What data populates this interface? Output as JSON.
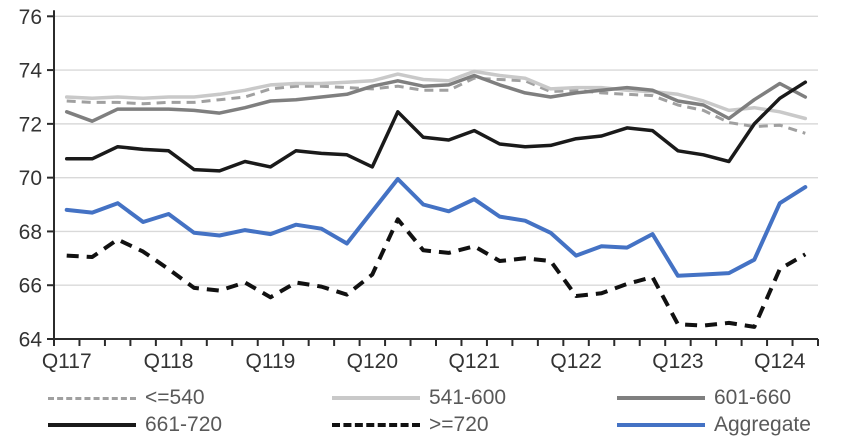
{
  "chart_data": {
    "type": "line",
    "title": "",
    "xlabel": "",
    "ylabel": "",
    "x_tick_labels": [
      "Q117",
      "Q118",
      "Q119",
      "Q120",
      "Q121",
      "Q122",
      "Q123",
      "Q124"
    ],
    "n_points": 30,
    "points_per_label": 4,
    "ylim": [
      64,
      76
    ],
    "yticks": [
      64,
      66,
      68,
      70,
      72,
      74,
      76
    ],
    "grid": "horizontal",
    "legend_position": "bottom",
    "series": [
      {
        "name": "<=540",
        "color": "#a0a0a0",
        "style": "dashed",
        "width": 3,
        "values": [
          72.85,
          72.8,
          72.8,
          72.75,
          72.8,
          72.8,
          72.9,
          73.0,
          73.3,
          73.4,
          73.4,
          73.35,
          73.3,
          73.4,
          73.25,
          73.25,
          73.7,
          73.65,
          73.6,
          73.2,
          73.25,
          73.15,
          73.1,
          73.05,
          72.7,
          72.5,
          72.05,
          71.9,
          71.95,
          71.65
        ]
      },
      {
        "name": "541-600",
        "color": "#c9c9c9",
        "style": "solid",
        "width": 3.5,
        "values": [
          73.0,
          72.95,
          73.0,
          72.95,
          73.0,
          73.0,
          73.1,
          73.25,
          73.45,
          73.5,
          73.5,
          73.55,
          73.6,
          73.85,
          73.65,
          73.6,
          73.95,
          73.8,
          73.7,
          73.3,
          73.35,
          73.35,
          73.25,
          73.2,
          73.1,
          72.85,
          72.5,
          72.6,
          72.45,
          72.2
        ]
      },
      {
        "name": "601-660",
        "color": "#7f7f7f",
        "style": "solid",
        "width": 3.5,
        "values": [
          72.45,
          72.1,
          72.55,
          72.55,
          72.55,
          72.5,
          72.4,
          72.6,
          72.85,
          72.9,
          73.0,
          73.1,
          73.4,
          73.6,
          73.4,
          73.45,
          73.8,
          73.45,
          73.15,
          73.0,
          73.15,
          73.25,
          73.35,
          73.25,
          72.85,
          72.7,
          72.2,
          72.9,
          73.5,
          73.0
        ]
      },
      {
        "name": "661-720",
        "color": "#1a1a1a",
        "style": "solid",
        "width": 3.5,
        "values": [
          70.7,
          70.7,
          71.15,
          71.05,
          71.0,
          70.3,
          70.25,
          70.6,
          70.4,
          71.0,
          70.9,
          70.85,
          70.4,
          72.45,
          71.5,
          71.4,
          71.75,
          71.25,
          71.15,
          71.2,
          71.45,
          71.55,
          71.85,
          71.75,
          71.0,
          70.85,
          70.6,
          72.0,
          72.95,
          73.55
        ]
      },
      {
        "name": ">=720",
        "color": "#111111",
        "style": "dashed",
        "width": 4,
        "values": [
          67.1,
          67.05,
          67.7,
          67.25,
          66.6,
          65.9,
          65.8,
          66.1,
          65.55,
          66.1,
          65.95,
          65.65,
          66.4,
          68.45,
          67.3,
          67.2,
          67.45,
          66.9,
          67.0,
          66.9,
          65.6,
          65.7,
          66.05,
          66.3,
          64.55,
          64.5,
          64.6,
          64.45,
          66.6,
          67.15
        ]
      },
      {
        "name": "Aggregate",
        "color": "#4472c4",
        "style": "solid",
        "width": 4,
        "values": [
          68.8,
          68.7,
          69.05,
          68.35,
          68.65,
          67.95,
          67.85,
          68.05,
          67.9,
          68.25,
          68.1,
          67.55,
          68.75,
          69.95,
          69.0,
          68.75,
          69.2,
          68.55,
          68.4,
          67.95,
          67.1,
          67.45,
          67.4,
          67.9,
          66.35,
          66.4,
          66.45,
          66.95,
          69.05,
          69.65
        ]
      }
    ]
  },
  "colors": {
    "axis": "#2b2b2b",
    "axis_text": "#333333",
    "grid": "#d9d9d9",
    "legend_text": "#595959",
    "background": "#ffffff"
  }
}
